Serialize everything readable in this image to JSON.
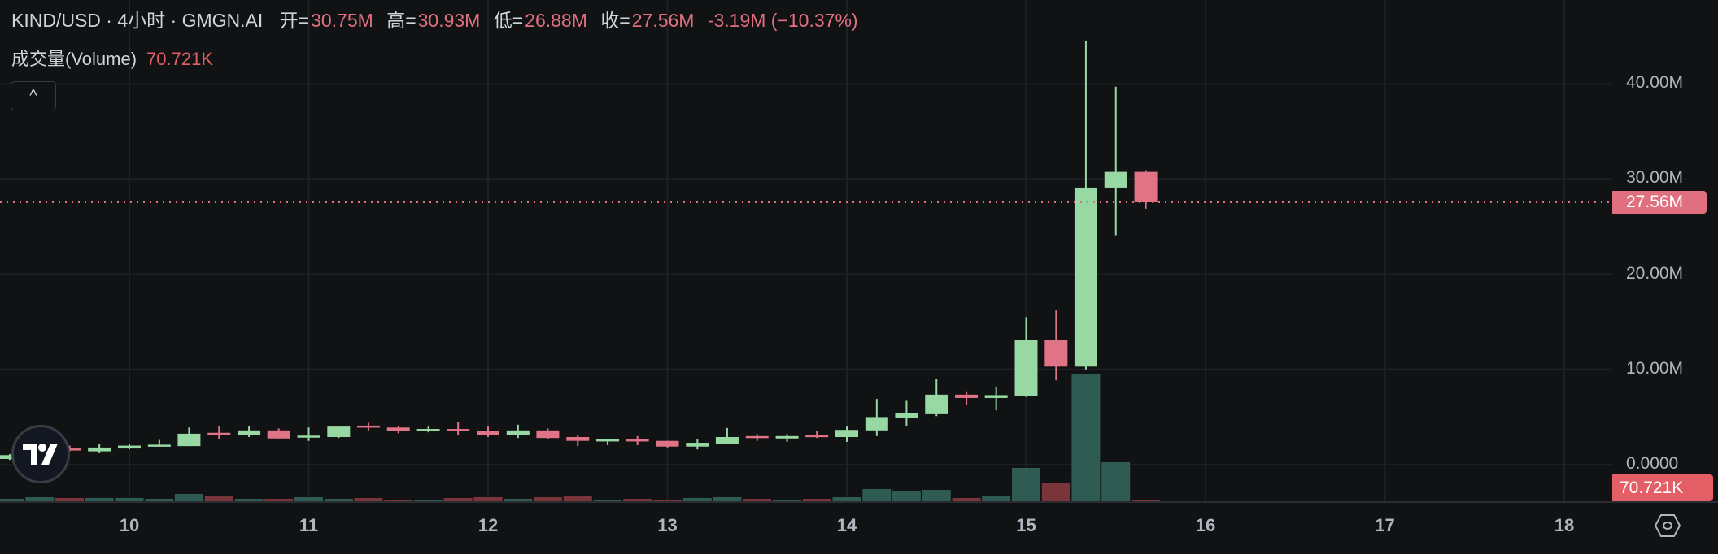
{
  "legend": {
    "symbol": "KIND/USD · 4小时 · GMGN.AI",
    "open_label": "开=",
    "open": "30.75M",
    "high_label": "高=",
    "high": "30.93M",
    "low_label": "低=",
    "low": "26.88M",
    "close_label": "收=",
    "close": "27.56M",
    "change": "-3.19M (−10.37%)"
  },
  "volume_legend": {
    "label": "成交量(Volume)",
    "value": "70.721K"
  },
  "collapse_button": {
    "icon": "chevron-up-icon",
    "glyph": "^"
  },
  "price_label": "27.56M",
  "volume_label": "70.721K",
  "colors": {
    "background": "#111214",
    "up": "#98d9a3",
    "down": "#e07385",
    "volume_up": "#2f5c52",
    "volume_down": "#7a353b",
    "last_price": "#e0707f",
    "last_volume": "#e35f65"
  },
  "chart_data": {
    "type": "candlestick",
    "y_ticks": [
      "40.00M",
      "30.00M",
      "20.00M",
      "10.00M",
      "0.0000"
    ],
    "y_tick_values": [
      40,
      30,
      20,
      10,
      0
    ],
    "x_ticks": [
      "10",
      "11",
      "12",
      "13",
      "14",
      "15",
      "16",
      "17",
      "18"
    ],
    "x_tick_values": [
      10,
      11,
      12,
      13,
      14,
      15,
      16,
      17,
      18
    ],
    "ylim": [
      -3.8,
      48.8
    ],
    "xlim": [
      9.28,
      18.35
    ],
    "price_unit": "M",
    "volume_unit": "K",
    "grid": true,
    "last_price": 27.56,
    "candles": [
      {
        "x": 9.333,
        "o": 0.6,
        "h": 1.1,
        "l": 0.5,
        "c": 1.0,
        "v": 141
      },
      {
        "x": 9.5,
        "o": 1.0,
        "h": 1.5,
        "l": 0.9,
        "c": 1.3,
        "v": 235
      },
      {
        "x": 9.667,
        "o": 1.7,
        "h": 2.0,
        "l": 1.4,
        "c": 1.5,
        "v": 188
      },
      {
        "x": 9.833,
        "o": 1.4,
        "h": 2.2,
        "l": 1.2,
        "c": 1.8,
        "v": 188
      },
      {
        "x": 10.0,
        "o": 1.7,
        "h": 2.2,
        "l": 1.6,
        "c": 2.0,
        "v": 188
      },
      {
        "x": 10.167,
        "o": 1.95,
        "h": 2.6,
        "l": 1.9,
        "c": 2.1,
        "v": 141
      },
      {
        "x": 10.333,
        "o": 1.95,
        "h": 3.9,
        "l": 1.95,
        "c": 3.25,
        "v": 423
      },
      {
        "x": 10.5,
        "o": 3.35,
        "h": 4.0,
        "l": 2.65,
        "c": 3.25,
        "v": 329
      },
      {
        "x": 10.667,
        "o": 3.15,
        "h": 4.0,
        "l": 2.9,
        "c": 3.6,
        "v": 141
      },
      {
        "x": 10.833,
        "o": 3.6,
        "h": 3.8,
        "l": 2.75,
        "c": 2.75,
        "v": 141
      },
      {
        "x": 11.0,
        "o": 2.9,
        "h": 3.9,
        "l": 2.5,
        "c": 3.05,
        "v": 235
      },
      {
        "x": 11.167,
        "o": 2.9,
        "h": 4.0,
        "l": 2.8,
        "c": 4.0,
        "v": 141
      },
      {
        "x": 11.333,
        "o": 4.1,
        "h": 4.4,
        "l": 3.6,
        "c": 3.9,
        "v": 188
      },
      {
        "x": 11.5,
        "o": 3.9,
        "h": 4.0,
        "l": 3.3,
        "c": 3.5,
        "v": 94
      },
      {
        "x": 11.667,
        "o": 3.6,
        "h": 4.0,
        "l": 3.4,
        "c": 3.75,
        "v": 94
      },
      {
        "x": 11.833,
        "o": 3.75,
        "h": 4.5,
        "l": 3.1,
        "c": 3.6,
        "v": 188
      },
      {
        "x": 12.0,
        "o": 3.5,
        "h": 4.0,
        "l": 2.9,
        "c": 3.15,
        "v": 235
      },
      {
        "x": 12.167,
        "o": 3.15,
        "h": 4.2,
        "l": 2.8,
        "c": 3.6,
        "v": 141
      },
      {
        "x": 12.333,
        "o": 3.6,
        "h": 3.8,
        "l": 2.7,
        "c": 2.8,
        "v": 235
      },
      {
        "x": 12.5,
        "o": 2.9,
        "h": 3.15,
        "l": 1.95,
        "c": 2.5,
        "v": 282
      },
      {
        "x": 12.667,
        "o": 2.45,
        "h": 2.65,
        "l": 2.05,
        "c": 2.65,
        "v": 94
      },
      {
        "x": 12.833,
        "o": 2.65,
        "h": 3.0,
        "l": 2.05,
        "c": 2.5,
        "v": 141
      },
      {
        "x": 13.0,
        "o": 2.5,
        "h": 2.5,
        "l": 1.8,
        "c": 1.9,
        "v": 94
      },
      {
        "x": 13.167,
        "o": 1.9,
        "h": 2.7,
        "l": 1.6,
        "c": 2.3,
        "v": 188
      },
      {
        "x": 13.333,
        "o": 2.2,
        "h": 3.85,
        "l": 2.2,
        "c": 2.9,
        "v": 235
      },
      {
        "x": 13.5,
        "o": 3.0,
        "h": 3.2,
        "l": 2.5,
        "c": 2.8,
        "v": 141
      },
      {
        "x": 13.667,
        "o": 2.75,
        "h": 3.2,
        "l": 2.4,
        "c": 3.0,
        "v": 94
      },
      {
        "x": 13.833,
        "o": 3.1,
        "h": 3.5,
        "l": 2.8,
        "c": 2.9,
        "v": 141
      },
      {
        "x": 14.0,
        "o": 2.9,
        "h": 4.0,
        "l": 2.4,
        "c": 3.65,
        "v": 235
      },
      {
        "x": 14.167,
        "o": 3.6,
        "h": 6.9,
        "l": 3.0,
        "c": 5.0,
        "v": 705
      },
      {
        "x": 14.333,
        "o": 4.95,
        "h": 6.7,
        "l": 4.1,
        "c": 5.4,
        "v": 564
      },
      {
        "x": 14.5,
        "o": 5.3,
        "h": 9.0,
        "l": 5.1,
        "c": 7.35,
        "v": 658
      },
      {
        "x": 14.667,
        "o": 7.35,
        "h": 7.7,
        "l": 6.3,
        "c": 7.0,
        "v": 188
      },
      {
        "x": 14.833,
        "o": 7.0,
        "h": 8.2,
        "l": 5.7,
        "c": 7.3,
        "v": 282
      },
      {
        "x": 15.0,
        "o": 7.2,
        "h": 15.5,
        "l": 7.1,
        "c": 13.1,
        "v": 1927
      },
      {
        "x": 15.167,
        "o": 13.1,
        "h": 16.2,
        "l": 8.85,
        "c": 10.3,
        "v": 1034
      },
      {
        "x": 15.333,
        "o": 10.3,
        "h": 44.5,
        "l": 10.0,
        "c": 29.1,
        "v": 7332
      },
      {
        "x": 15.5,
        "o": 29.1,
        "h": 39.7,
        "l": 24.1,
        "c": 30.75,
        "v": 2256
      },
      {
        "x": 15.667,
        "o": 30.75,
        "h": 30.93,
        "l": 26.88,
        "c": 27.56,
        "v": 70.721
      }
    ]
  }
}
